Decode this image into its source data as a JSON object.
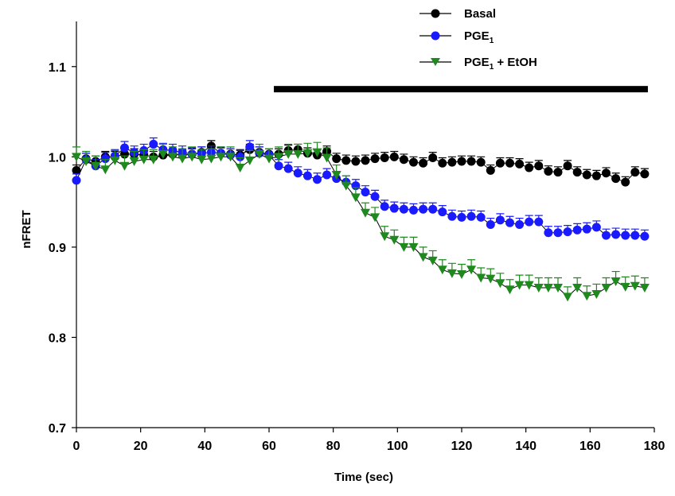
{
  "chart_data": {
    "type": "scatter",
    "title": "",
    "xlabel": "Time (sec)",
    "ylabel": "nFRET",
    "xlim": [
      0,
      180
    ],
    "ylim": [
      0.7,
      1.15
    ],
    "xticks": [
      0,
      20,
      40,
      60,
      80,
      100,
      120,
      140,
      160,
      180
    ],
    "xtick_labels": [
      "0",
      "20",
      "40",
      "60",
      "80",
      "100",
      "120",
      "140",
      "160",
      "180"
    ],
    "yticks": [
      0.7,
      0.8,
      0.9,
      1.0,
      1.1
    ],
    "ytick_labels": [
      "0.7",
      "0.8",
      "0.9",
      "1.0",
      "1.1"
    ],
    "grid": false,
    "legend_position": "top-right",
    "treatment_bar": {
      "x_start": 61.5,
      "x_end": 178,
      "y": 1.075
    },
    "series": [
      {
        "name": "Basal",
        "legend_label": {
          "main": "Basal",
          "sub": "",
          "rest": ""
        },
        "marker": "circle",
        "color": "#000000",
        "error": 0.006,
        "x": [
          0,
          3,
          6,
          9,
          12,
          15,
          18,
          21,
          24,
          27,
          30,
          33,
          36,
          39,
          42,
          45,
          48,
          51,
          54,
          57,
          60,
          63,
          66,
          69,
          72,
          75,
          78,
          81,
          84,
          87,
          90,
          93,
          96,
          99,
          102,
          105,
          108,
          111,
          114,
          117,
          120,
          123,
          126,
          129,
          132,
          135,
          138,
          141,
          144,
          147,
          150,
          153,
          156,
          159,
          162,
          165,
          168,
          171,
          174,
          177
        ],
        "y": [
          0.985,
          0.998,
          0.995,
          1.0,
          1.0,
          1.003,
          1.003,
          1.002,
          1.0,
          1.002,
          1.003,
          1.002,
          1.003,
          1.005,
          1.012,
          1.004,
          1.003,
          1.002,
          1.008,
          1.005,
          1.003,
          1.003,
          1.007,
          1.008,
          1.004,
          1.002,
          1.006,
          0.998,
          0.996,
          0.995,
          0.996,
          0.998,
          0.999,
          1.0,
          0.997,
          0.994,
          0.993,
          0.999,
          0.993,
          0.994,
          0.995,
          0.995,
          0.994,
          0.985,
          0.993,
          0.993,
          0.992,
          0.988,
          0.99,
          0.984,
          0.983,
          0.99,
          0.983,
          0.98,
          0.979,
          0.982,
          0.976,
          0.972,
          0.983,
          0.981
        ]
      },
      {
        "name": "PGE1",
        "legend_label": {
          "main": "PGE",
          "sub": "1",
          "rest": ""
        },
        "marker": "circle",
        "color": "#1a1aff",
        "error": 0.007,
        "x": [
          0,
          3,
          6,
          9,
          12,
          15,
          18,
          21,
          24,
          27,
          30,
          33,
          36,
          39,
          42,
          45,
          48,
          51,
          54,
          57,
          60,
          63,
          66,
          69,
          72,
          75,
          78,
          81,
          84,
          87,
          90,
          93,
          96,
          99,
          102,
          105,
          108,
          111,
          114,
          117,
          120,
          123,
          126,
          129,
          132,
          135,
          138,
          141,
          144,
          147,
          150,
          153,
          156,
          159,
          162,
          165,
          168,
          171,
          174,
          177
        ],
        "y": [
          0.974,
          0.997,
          0.99,
          0.998,
          1.001,
          1.01,
          1.005,
          1.007,
          1.014,
          1.008,
          1.007,
          1.005,
          1.003,
          1.004,
          1.005,
          1.004,
          1.002,
          1.0,
          1.011,
          1.004,
          1.002,
          0.99,
          0.987,
          0.982,
          0.979,
          0.975,
          0.98,
          0.976,
          0.972,
          0.968,
          0.961,
          0.956,
          0.945,
          0.943,
          0.942,
          0.941,
          0.942,
          0.942,
          0.939,
          0.934,
          0.933,
          0.934,
          0.933,
          0.925,
          0.93,
          0.927,
          0.925,
          0.928,
          0.928,
          0.916,
          0.916,
          0.917,
          0.919,
          0.92,
          0.922,
          0.913,
          0.914,
          0.913,
          0.913,
          0.912
        ]
      },
      {
        "name": "PGE1 + EtOH",
        "legend_label": {
          "main": "PGE",
          "sub": "1",
          "rest": " + EtOH"
        },
        "marker": "triangle-down",
        "color": "#1e8a1e",
        "error": 0.011,
        "x": [
          0,
          3,
          6,
          9,
          12,
          15,
          18,
          21,
          24,
          27,
          30,
          33,
          36,
          39,
          42,
          45,
          48,
          51,
          54,
          57,
          60,
          63,
          66,
          69,
          72,
          75,
          78,
          81,
          84,
          87,
          90,
          93,
          96,
          99,
          102,
          105,
          108,
          111,
          114,
          117,
          120,
          123,
          126,
          129,
          132,
          135,
          138,
          141,
          144,
          147,
          150,
          153,
          156,
          159,
          162,
          165,
          168,
          171,
          174,
          177
        ],
        "y": [
          1.0,
          0.995,
          0.99,
          0.986,
          0.996,
          0.99,
          0.995,
          0.997,
          0.997,
          1.003,
          1.0,
          0.998,
          1.0,
          0.997,
          0.998,
          1.0,
          1.0,
          0.988,
          0.996,
          1.003,
          0.998,
          1.0,
          1.003,
          1.003,
          1.004,
          1.005,
          0.999,
          0.98,
          0.968,
          0.955,
          0.938,
          0.933,
          0.912,
          0.908,
          0.9,
          0.9,
          0.889,
          0.885,
          0.875,
          0.871,
          0.87,
          0.875,
          0.866,
          0.865,
          0.86,
          0.853,
          0.858,
          0.858,
          0.855,
          0.855,
          0.855,
          0.845,
          0.855,
          0.846,
          0.848,
          0.855,
          0.862,
          0.856,
          0.857,
          0.855
        ]
      }
    ]
  }
}
